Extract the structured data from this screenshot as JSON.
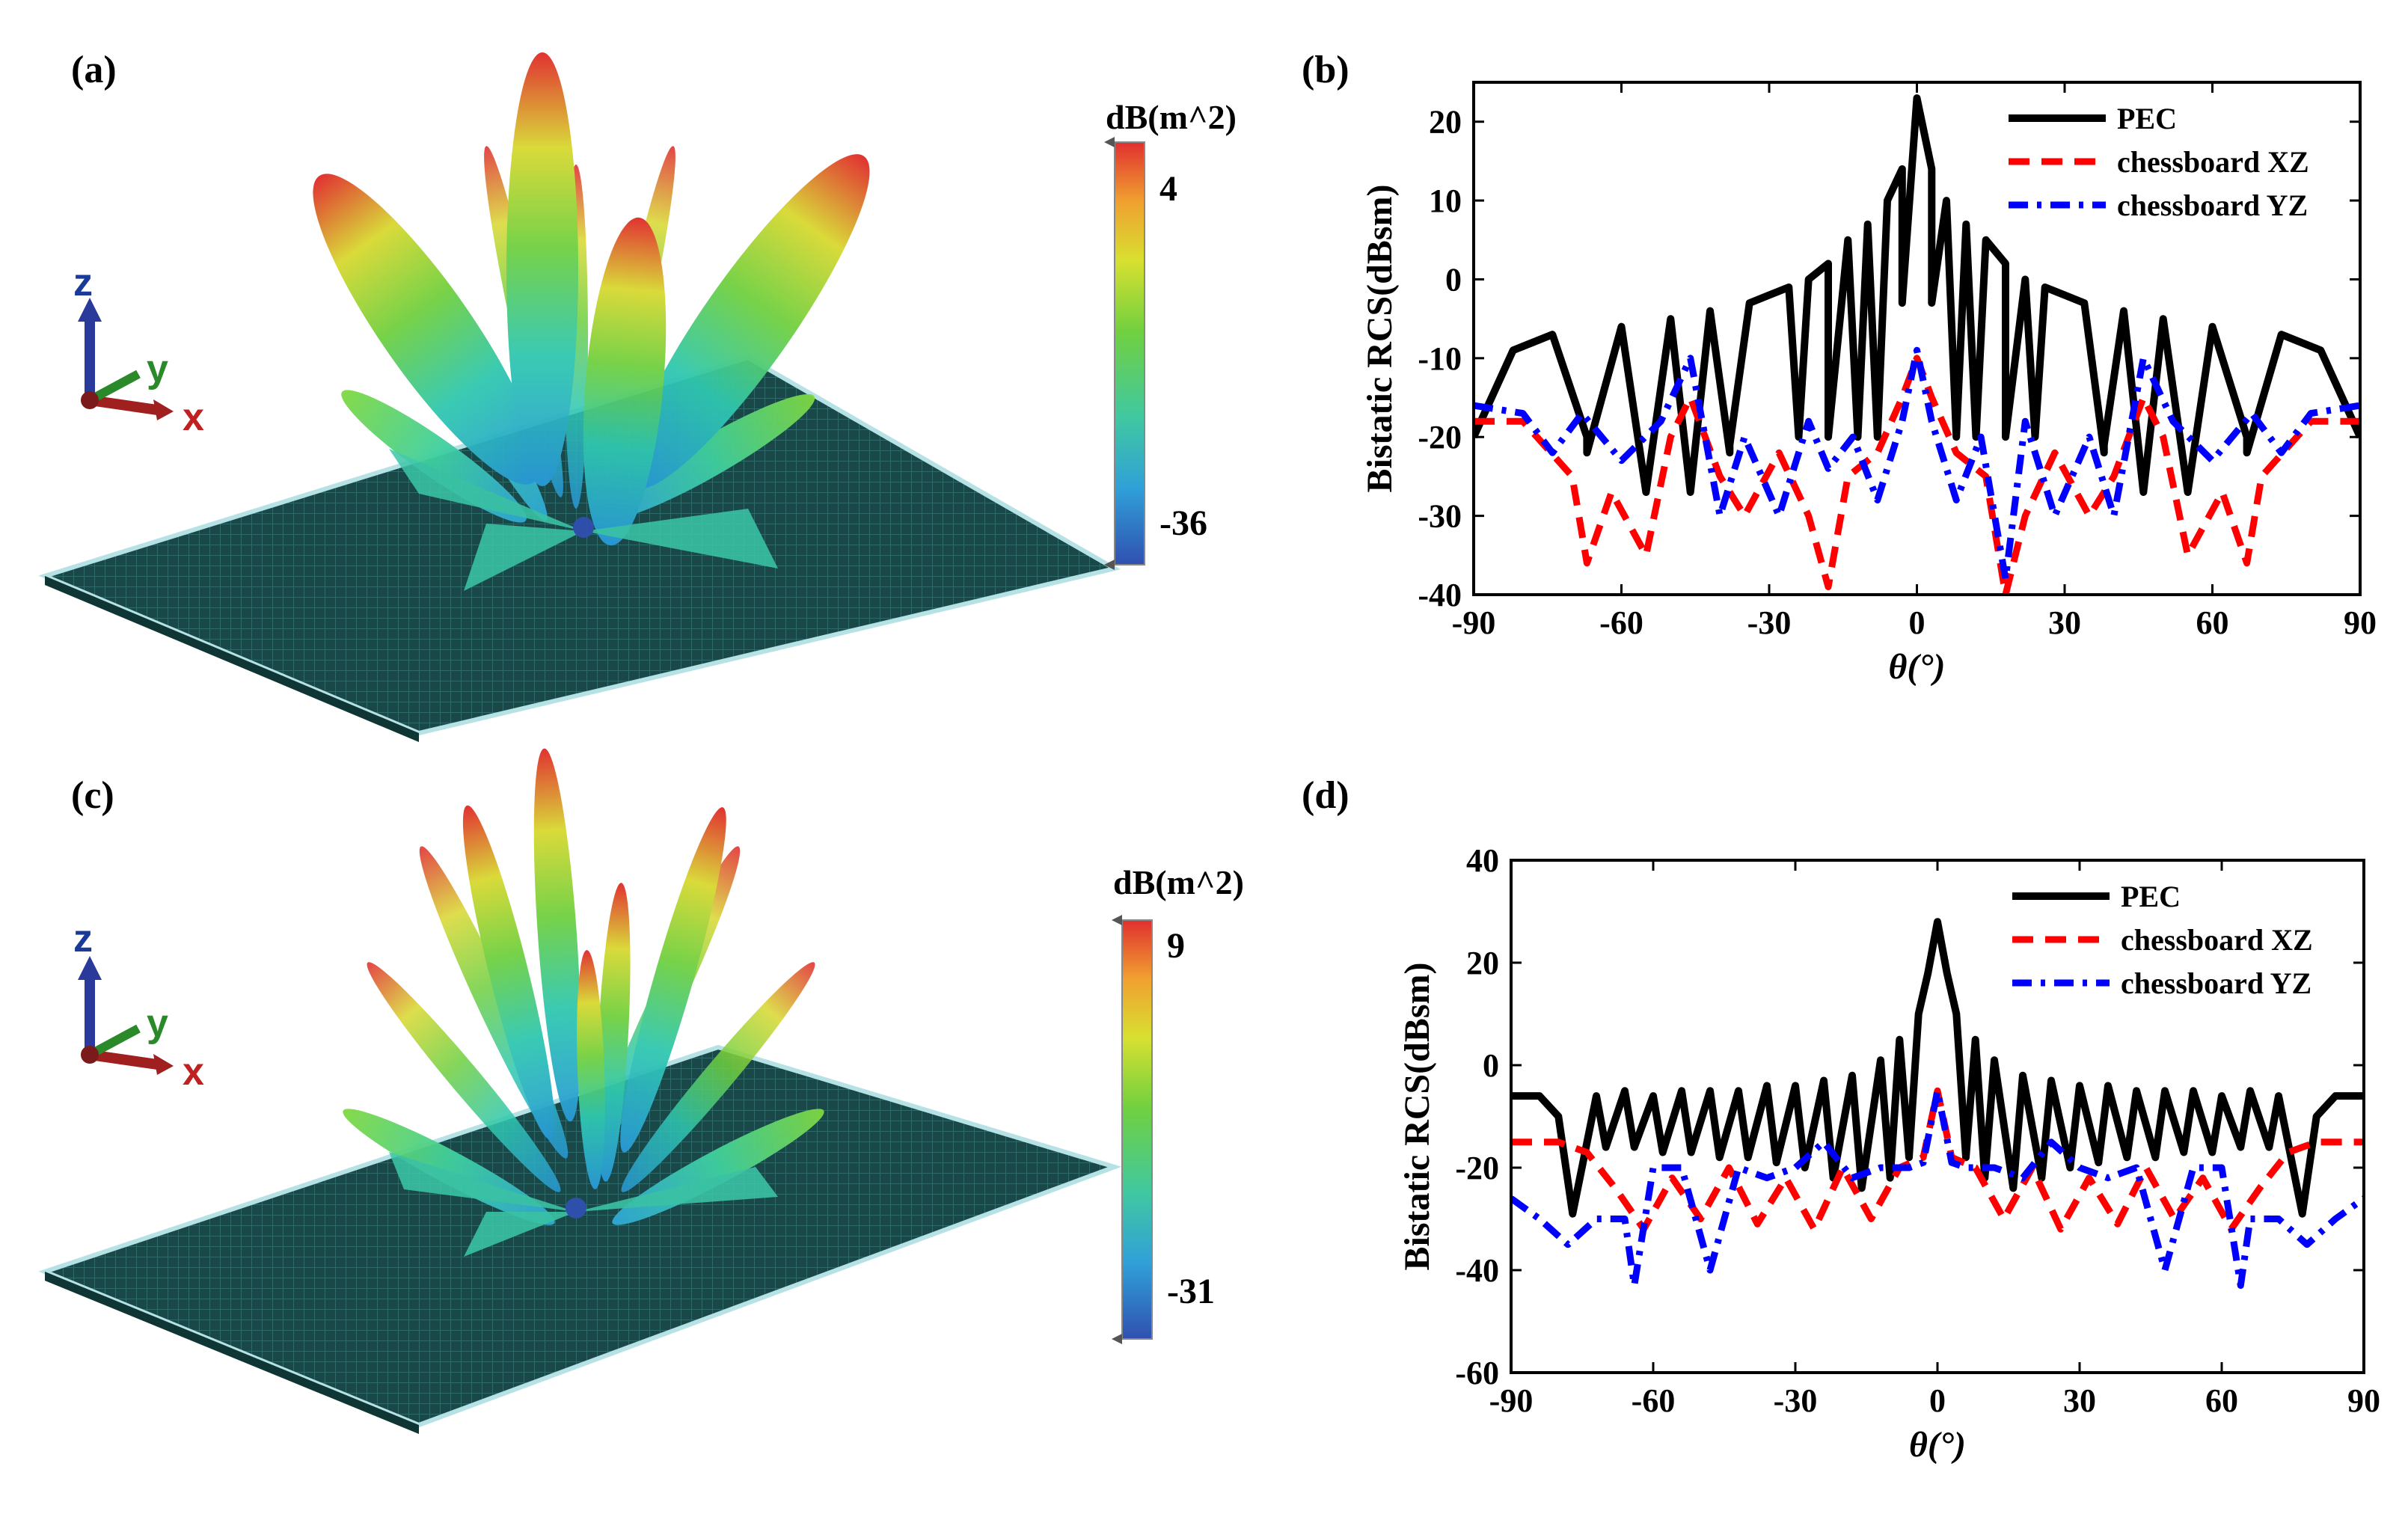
{
  "panels": {
    "a": {
      "label": "(a)",
      "colorbar": {
        "title": "dB(m^2)",
        "max_label": "4",
        "min_label": "-36",
        "max": 4,
        "min": -36
      },
      "axes_triad": {
        "z": "z",
        "y": "y",
        "x": "x"
      }
    },
    "b": {
      "label": "(b)"
    },
    "c": {
      "label": "(c)",
      "colorbar": {
        "title": "dB(m^2)",
        "max_label": "9",
        "min_label": "-31",
        "max": 9,
        "min": -31
      },
      "axes_triad": {
        "z": "z",
        "y": "y",
        "x": "x"
      }
    },
    "d": {
      "label": "(d)"
    }
  },
  "colors": {
    "pec": "#000000",
    "xz": "#ff0000",
    "yz": "#0000ff",
    "plate": "#1d4a4a",
    "plate_edge": "#b6e2e6"
  },
  "chart_data": [
    {
      "id": "b",
      "type": "line",
      "title": "",
      "xlabel": "θ(°)",
      "ylabel": "Bistatic RCS(dBsm)",
      "xlim": [
        -90,
        90
      ],
      "ylim": [
        -40,
        25
      ],
      "xticks": [
        -90,
        -60,
        -30,
        0,
        30,
        60,
        90
      ],
      "yticks": [
        -40,
        -30,
        -20,
        -10,
        0,
        10,
        20
      ],
      "legend": {
        "position": "top-right",
        "entries": [
          "PEC",
          "chessboard XZ",
          "chessboard YZ"
        ]
      },
      "series": [
        {
          "name": "PEC",
          "style": "solid",
          "x": [
            -90,
            -82,
            -74,
            -67,
            -60,
            -55,
            -50,
            -46,
            -42,
            -38,
            -34,
            -30,
            -26,
            -22,
            -18,
            -14,
            -10,
            -6,
            -3,
            0,
            3,
            6,
            10,
            14,
            18,
            22,
            26,
            30,
            34,
            38,
            42,
            46,
            50,
            55,
            60,
            67,
            74,
            82,
            90
          ],
          "y": [
            -20,
            -9,
            -7,
            -20,
            -6,
            -27,
            -5,
            -27,
            -4,
            -22,
            -3,
            -2,
            -1,
            0,
            2,
            5,
            7,
            10,
            14,
            23,
            14,
            10,
            7,
            5,
            2,
            0,
            -1,
            -2,
            -3,
            -22,
            -4,
            -27,
            -5,
            -27,
            -6,
            -20,
            -7,
            -9,
            -20
          ],
          "nulls_x": [
            -67,
            -55,
            -46,
            -38,
            -24,
            -18,
            -12,
            -8,
            -3,
            3,
            8,
            12,
            18,
            24,
            38,
            46,
            55,
            67
          ],
          "nulls_y": [
            -22,
            -27,
            -27,
            -21,
            -20,
            -20,
            -20,
            -20,
            -3,
            -3,
            -20,
            -20,
            -20,
            -20,
            -21,
            -27,
            -27,
            -22
          ]
        },
        {
          "name": "chessboard XZ",
          "style": "dashed",
          "x": [
            -90,
            -80,
            -70,
            -67,
            -62,
            -55,
            -50,
            -46,
            -40,
            -35,
            -28,
            -22,
            -18,
            -14,
            -8,
            -3,
            0,
            3,
            8,
            14,
            18,
            22,
            28,
            35,
            40,
            46,
            50,
            55,
            62,
            67,
            70,
            80,
            90
          ],
          "y": [
            -18,
            -18,
            -25,
            -36,
            -27,
            -35,
            -20,
            -15,
            -25,
            -30,
            -22,
            -30,
            -39,
            -25,
            -22,
            -15,
            -10,
            -15,
            -22,
            -25,
            -40,
            -30,
            -22,
            -30,
            -25,
            -15,
            -20,
            -35,
            -27,
            -36,
            -25,
            -18,
            -18
          ]
        },
        {
          "name": "chessboard YZ",
          "style": "dashdot",
          "x": [
            -90,
            -80,
            -74,
            -68,
            -60,
            -52,
            -46,
            -40,
            -35,
            -28,
            -22,
            -18,
            -13,
            -8,
            -3,
            0,
            3,
            8,
            13,
            18,
            22,
            28,
            35,
            40,
            46,
            52,
            60,
            68,
            74,
            80,
            90
          ],
          "y": [
            -16,
            -17,
            -22,
            -17,
            -23,
            -18,
            -10,
            -30,
            -20,
            -30,
            -18,
            -24,
            -20,
            -28,
            -18,
            -9,
            -18,
            -28,
            -20,
            -38,
            -18,
            -30,
            -20,
            -30,
            -10,
            -18,
            -23,
            -17,
            -22,
            -17,
            -16
          ]
        }
      ]
    },
    {
      "id": "d",
      "type": "line",
      "title": "",
      "xlabel": "θ(°)",
      "ylabel": "Bistatic RCS(dBsm)",
      "xlim": [
        -90,
        90
      ],
      "ylim": [
        -60,
        40
      ],
      "xticks": [
        -90,
        -60,
        -30,
        0,
        30,
        60,
        90
      ],
      "yticks": [
        -60,
        -40,
        -20,
        0,
        20,
        40
      ],
      "legend": {
        "position": "top-right",
        "entries": [
          "PEC",
          "chessboard XZ",
          "chessboard YZ"
        ]
      },
      "series": [
        {
          "name": "PEC",
          "style": "solid",
          "x": [
            -90,
            -84,
            -80,
            -77,
            -72,
            -66,
            -60,
            -54,
            -48,
            -42,
            -36,
            -30,
            -24,
            -18,
            -12,
            -8,
            -4,
            -2,
            0,
            2,
            4,
            8,
            12,
            18,
            24,
            30,
            36,
            42,
            48,
            54,
            60,
            66,
            72,
            77,
            80,
            84,
            90
          ],
          "y": [
            -6,
            -6,
            -10,
            -29,
            -6,
            -5,
            -6,
            -5,
            -5,
            -5,
            -4,
            -4,
            -3,
            -2,
            1,
            5,
            10,
            18,
            28,
            18,
            10,
            5,
            1,
            -2,
            -3,
            -4,
            -4,
            -5,
            -5,
            -5,
            -6,
            -5,
            -6,
            -29,
            -10,
            -6,
            -6
          ],
          "nulls_x": [
            -70,
            -64,
            -58,
            -52,
            -46,
            -40,
            -34,
            -28,
            -22,
            -16,
            -10,
            -6,
            6,
            10,
            16,
            22,
            28,
            34,
            40,
            46,
            52,
            58,
            64,
            70
          ],
          "nulls_y": [
            -16,
            -16,
            -17,
            -17,
            -18,
            -18,
            -19,
            -20,
            -22,
            -24,
            -22,
            -18,
            -18,
            -22,
            -24,
            -22,
            -20,
            -19,
            -18,
            -18,
            -17,
            -17,
            -16,
            -16
          ]
        },
        {
          "name": "chessboard XZ",
          "style": "dashed",
          "x": [
            -90,
            -80,
            -74,
            -68,
            -62,
            -56,
            -50,
            -44,
            -38,
            -32,
            -26,
            -20,
            -14,
            -8,
            -3,
            0,
            3,
            8,
            14,
            20,
            26,
            32,
            38,
            44,
            50,
            56,
            62,
            68,
            74,
            80,
            90
          ],
          "y": [
            -15,
            -15,
            -17,
            -24,
            -32,
            -22,
            -30,
            -20,
            -31,
            -22,
            -32,
            -20,
            -30,
            -20,
            -18,
            -5,
            -18,
            -20,
            -30,
            -20,
            -32,
            -22,
            -31,
            -20,
            -30,
            -22,
            -32,
            -24,
            -17,
            -15,
            -15
          ]
        },
        {
          "name": "chessboard YZ",
          "style": "dashdot",
          "x": [
            -90,
            -84,
            -78,
            -72,
            -66,
            -64,
            -60,
            -54,
            -48,
            -42,
            -36,
            -30,
            -24,
            -18,
            -12,
            -6,
            -3,
            0,
            3,
            6,
            12,
            18,
            24,
            30,
            36,
            42,
            48,
            54,
            60,
            64,
            66,
            72,
            78,
            84,
            90
          ],
          "y": [
            -26,
            -30,
            -35,
            -30,
            -30,
            -43,
            -20,
            -20,
            -40,
            -20,
            -22,
            -20,
            -15,
            -22,
            -20,
            -20,
            -19,
            -5,
            -19,
            -20,
            -20,
            -22,
            -15,
            -20,
            -22,
            -20,
            -40,
            -20,
            -20,
            -43,
            -30,
            -30,
            -35,
            -30,
            -26
          ]
        }
      ]
    }
  ]
}
